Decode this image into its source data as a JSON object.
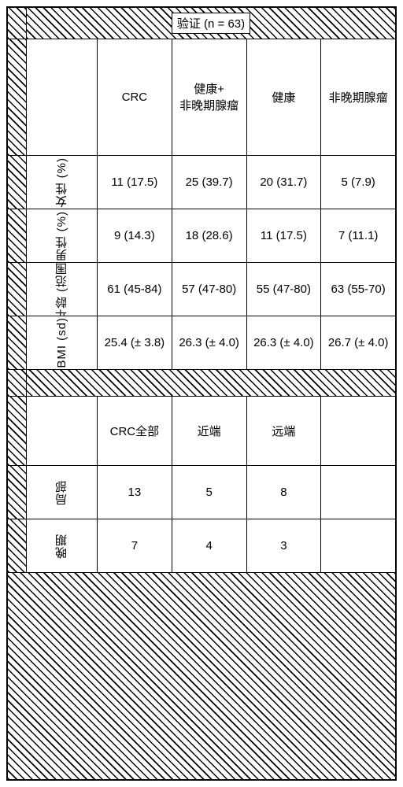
{
  "title": "验证 (n = 63)",
  "col_headers": {
    "crc": "CRC",
    "healthy_nonadv": "健康+\n非晚期腺瘤",
    "healthy": "健康",
    "nonadv": "非晚期腺瘤"
  },
  "row_labels": {
    "female": "女性 (%)",
    "male": "男性 (%)",
    "age": "年龄 (范围)",
    "bmi": "BMI (sd)",
    "local": "局部",
    "late": "晚期"
  },
  "data": {
    "female": {
      "crc": "11 (17.5)",
      "combo": "25 (39.7)",
      "healthy": "20 (31.7)",
      "nonadv": "5 (7.9)"
    },
    "male": {
      "crc": "9 (14.3)",
      "combo": "18 (28.6)",
      "healthy": "11 (17.5)",
      "nonadv": "7 (11.1)"
    },
    "age": {
      "crc": "61 (45-84)",
      "combo": "57 (47-80)",
      "healthy": "55 (47-80)",
      "nonadv": "63 (55-70)"
    },
    "bmi": {
      "crc": "25.4 (± 3.8)",
      "combo": "26.3 (± 4.0)",
      "healthy": "26.3 (± 4.0)",
      "nonadv": "26.7 (± 4.0)"
    }
  },
  "sub_headers": {
    "crc_all": "CRC全部",
    "proximal": "近端",
    "distal": "远端"
  },
  "sub_data": {
    "local": {
      "crc_all": "13",
      "proximal": "5",
      "distal": "8"
    },
    "late": {
      "crc_all": "7",
      "proximal": "4",
      "distal": "3"
    }
  },
  "style": {
    "border_color": "#000000",
    "background": "#ffffff",
    "font_size": 15
  }
}
